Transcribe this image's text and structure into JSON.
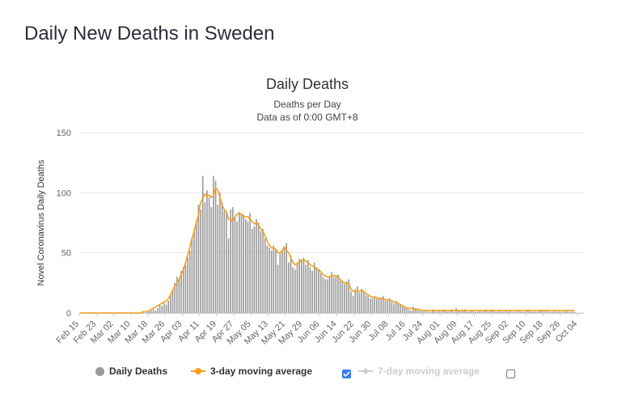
{
  "page": {
    "title": "Daily New Deaths in Sweden"
  },
  "legend": {
    "daily_label": "Daily Deaths",
    "ma3_label": "3-day moving average",
    "ma7_label": "7-day moving average",
    "ma3_checked": true,
    "ma7_checked": false
  },
  "colors": {
    "bars": "#999999",
    "ma3": "#f2a01e",
    "ma7": "#cccccc",
    "grid": "#e6e6e6",
    "checkbox": "#3b7ded"
  },
  "chart_data": {
    "type": "bar",
    "title": "Daily Deaths",
    "subtitle_lines": [
      "Deaths per Day",
      "Data as of 0:00 GMT+8"
    ],
    "ylabel": "Novel Coronavirus Daily Deaths",
    "ylim": [
      0,
      150
    ],
    "yticks": [
      0,
      50,
      100,
      150
    ],
    "x_start": "2020-02-15",
    "x_end": "2020-10-07",
    "xticks": [
      {
        "date": "2020-02-15",
        "label": "Feb 15"
      },
      {
        "date": "2020-02-23",
        "label": "Feb 23"
      },
      {
        "date": "2020-03-02",
        "label": "Mar 02"
      },
      {
        "date": "2020-03-10",
        "label": "Mar 10"
      },
      {
        "date": "2020-03-18",
        "label": "Mar 18"
      },
      {
        "date": "2020-03-26",
        "label": "Mar 26"
      },
      {
        "date": "2020-04-03",
        "label": "Apr 03"
      },
      {
        "date": "2020-04-11",
        "label": "Apr 11"
      },
      {
        "date": "2020-04-19",
        "label": "Apr 19"
      },
      {
        "date": "2020-04-27",
        "label": "Apr 27"
      },
      {
        "date": "2020-05-05",
        "label": "May 05"
      },
      {
        "date": "2020-05-13",
        "label": "May 13"
      },
      {
        "date": "2020-05-21",
        "label": "May 21"
      },
      {
        "date": "2020-05-29",
        "label": "May 29"
      },
      {
        "date": "2020-06-06",
        "label": "Jun 06"
      },
      {
        "date": "2020-06-14",
        "label": "Jun 14"
      },
      {
        "date": "2020-06-22",
        "label": "Jun 22"
      },
      {
        "date": "2020-06-30",
        "label": "Jun 30"
      },
      {
        "date": "2020-07-08",
        "label": "Jul 08"
      },
      {
        "date": "2020-07-16",
        "label": "Jul 16"
      },
      {
        "date": "2020-07-24",
        "label": "Jul 24"
      },
      {
        "date": "2020-08-01",
        "label": "Aug 01"
      },
      {
        "date": "2020-08-09",
        "label": "Aug 09"
      },
      {
        "date": "2020-08-17",
        "label": "Aug 17"
      },
      {
        "date": "2020-08-25",
        "label": "Aug 25"
      },
      {
        "date": "2020-09-02",
        "label": "Sep 02"
      },
      {
        "date": "2020-09-10",
        "label": "Sep 10"
      },
      {
        "date": "2020-09-18",
        "label": "Sep 18"
      },
      {
        "date": "2020-09-26",
        "label": "Sep 26"
      },
      {
        "date": "2020-10-04",
        "label": "Oct 04"
      }
    ],
    "series": [
      {
        "name": "Daily Deaths",
        "type": "bar",
        "values": [
          0,
          0,
          0,
          0,
          0,
          0,
          0,
          0,
          0,
          0,
          0,
          0,
          0,
          0,
          0,
          0,
          0,
          0,
          0,
          0,
          0,
          0,
          0,
          0,
          0,
          0,
          0,
          0,
          0,
          1,
          0,
          1,
          1,
          2,
          3,
          2,
          4,
          7,
          6,
          8,
          7,
          10,
          14,
          19,
          25,
          30,
          28,
          35,
          38,
          40,
          46,
          52,
          62,
          69,
          75,
          90,
          86,
          114,
          92,
          102,
          96,
          88,
          114,
          110,
          90,
          100,
          92,
          85,
          84,
          62,
          86,
          88,
          80,
          76,
          84,
          82,
          82,
          78,
          76,
          83,
          70,
          72,
          78,
          75,
          68,
          70,
          62,
          56,
          54,
          52,
          56,
          53,
          40,
          50,
          52,
          55,
          58,
          42,
          48,
          38,
          36,
          42,
          45,
          44,
          46,
          40,
          44,
          38,
          35,
          42,
          38,
          36,
          33,
          30,
          28,
          28,
          30,
          34,
          30,
          30,
          32,
          27,
          26,
          24,
          26,
          28,
          18,
          14,
          20,
          22,
          17,
          20,
          18,
          15,
          14,
          12,
          12,
          14,
          12,
          12,
          13,
          14,
          10,
          11,
          12,
          9,
          8,
          10,
          8,
          7,
          6,
          5,
          4,
          3,
          2,
          5,
          4,
          3,
          2,
          1,
          2,
          2,
          1,
          1,
          3,
          2,
          1,
          2,
          1,
          3,
          2,
          1,
          2,
          3,
          1,
          4,
          2,
          1,
          2,
          3,
          1,
          1,
          2,
          2,
          1,
          1,
          2,
          1,
          2,
          3,
          1,
          2,
          3,
          1,
          1,
          2,
          1,
          1,
          2,
          1,
          2,
          1,
          1,
          1,
          2,
          1,
          1,
          1,
          2,
          3,
          1,
          1,
          1,
          1,
          2,
          2,
          1,
          2,
          1,
          1,
          1,
          2,
          1,
          1,
          1,
          1,
          2,
          1,
          1,
          1,
          1
        ]
      },
      {
        "name": "3-day moving average",
        "type": "line",
        "values": [
          0,
          0,
          0,
          0,
          0,
          0,
          0,
          0,
          0,
          0,
          0,
          0,
          0,
          0,
          0,
          0,
          0,
          0,
          0,
          0,
          0,
          0,
          0,
          0,
          0,
          0,
          0,
          0,
          0,
          1,
          1,
          1,
          2,
          3,
          4,
          5,
          6,
          7,
          8,
          9,
          10,
          12,
          15,
          19,
          22,
          25,
          28,
          32,
          36,
          42,
          48,
          55,
          62,
          68,
          75,
          82,
          92,
          95,
          99,
          97,
          98,
          96,
          98,
          104,
          102,
          96,
          90,
          86,
          84,
          78,
          78,
          76,
          80,
          82,
          83,
          82,
          80,
          80,
          80,
          78,
          76,
          74,
          75,
          73,
          70,
          68,
          64,
          60,
          56,
          54,
          54,
          53,
          50,
          50,
          52,
          55,
          52,
          50,
          46,
          42,
          40,
          41,
          42,
          44,
          44,
          43,
          42,
          40,
          39,
          38,
          36,
          36,
          34,
          32,
          31,
          30,
          30,
          31,
          31,
          31,
          30,
          28,
          26,
          25,
          25,
          24,
          20,
          18,
          18,
          18,
          18,
          19,
          18,
          16,
          15,
          14,
          13,
          13,
          13,
          12,
          12,
          12,
          11,
          11,
          11,
          10,
          9,
          9,
          8,
          7,
          6,
          5,
          4,
          4,
          4,
          3,
          3,
          3,
          3,
          2,
          2,
          2,
          2,
          2,
          2,
          2,
          2,
          2,
          2,
          2,
          2,
          2,
          2,
          2,
          2,
          2,
          2,
          2,
          2,
          2,
          2,
          2,
          2,
          2,
          2,
          2,
          2,
          2,
          2,
          2,
          2,
          2,
          2,
          2,
          2,
          2,
          2,
          2,
          2,
          2,
          2,
          2,
          2,
          2,
          2,
          2,
          2,
          2,
          2,
          2,
          2,
          2,
          2,
          2,
          2,
          2,
          2,
          2,
          2,
          2,
          2,
          2,
          2,
          2,
          2,
          2,
          2,
          2,
          2,
          2,
          2
        ]
      }
    ]
  }
}
